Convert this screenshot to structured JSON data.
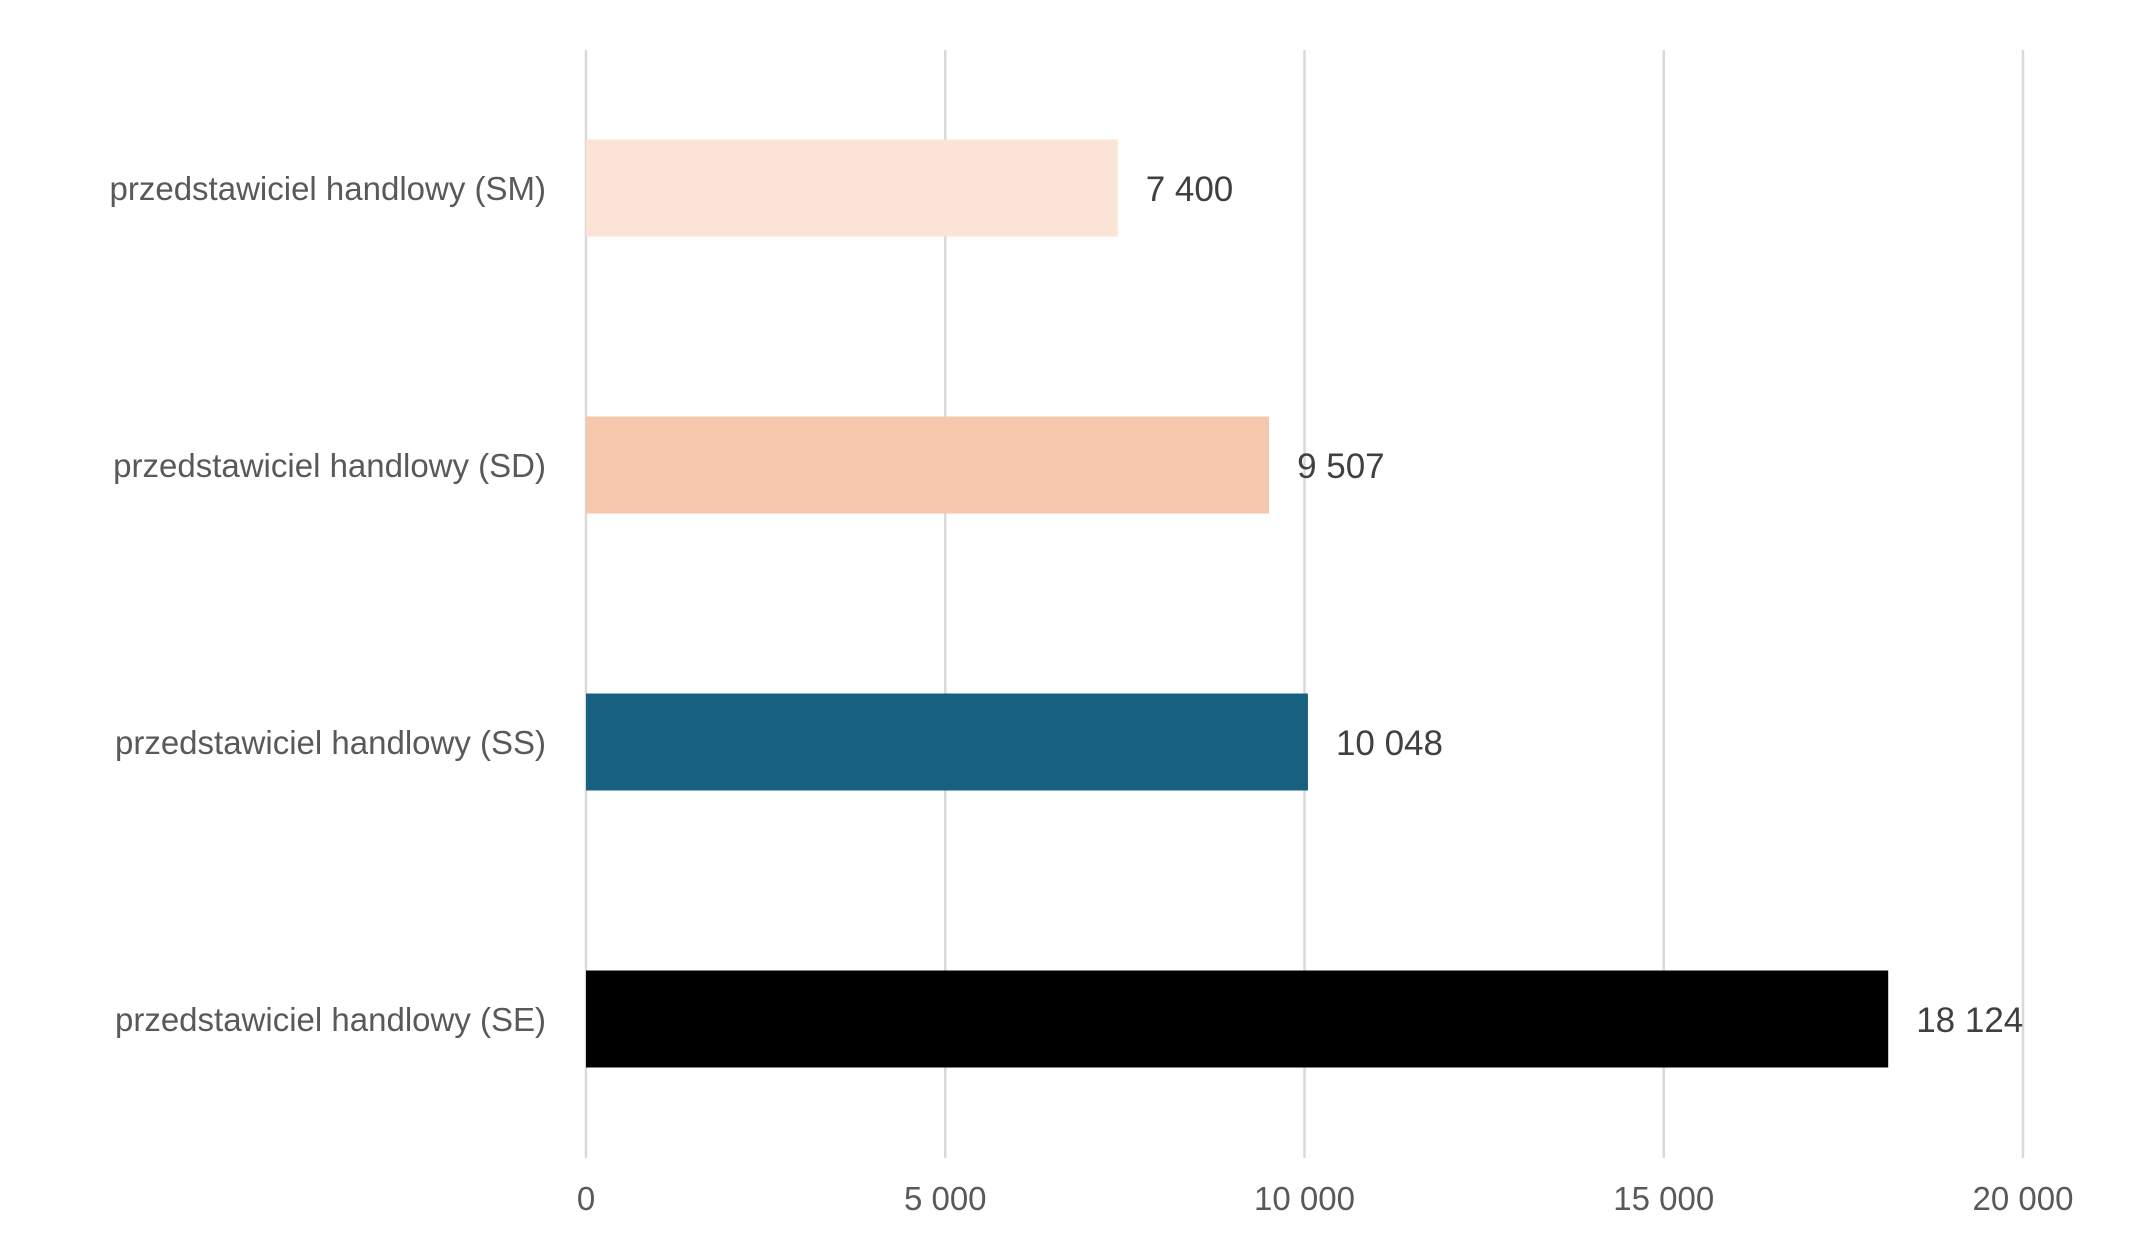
{
  "chart_data": {
    "type": "bar",
    "orientation": "horizontal",
    "categories": [
      "przedstawiciel handlowy (SM)",
      "przedstawiciel handlowy (SD)",
      "przedstawiciel handlowy (SS)",
      "przedstawiciel handlowy (SE)"
    ],
    "values": [
      7400,
      9507,
      10048,
      18124
    ],
    "value_labels": [
      "7 400",
      "9 507",
      "10 048",
      "18 124"
    ],
    "bar_colors": [
      "#fbe3d6",
      "#f5c8ae",
      "#17607f",
      "#000000"
    ],
    "xlim": [
      0,
      20000
    ],
    "x_ticks": [
      0,
      5000,
      10000,
      15000,
      20000
    ],
    "x_tick_labels": [
      "0",
      "5 000",
      "10 000",
      "15 000",
      "20 000"
    ],
    "grid": true,
    "legend": "none",
    "title": "",
    "xlabel": "",
    "ylabel": ""
  }
}
